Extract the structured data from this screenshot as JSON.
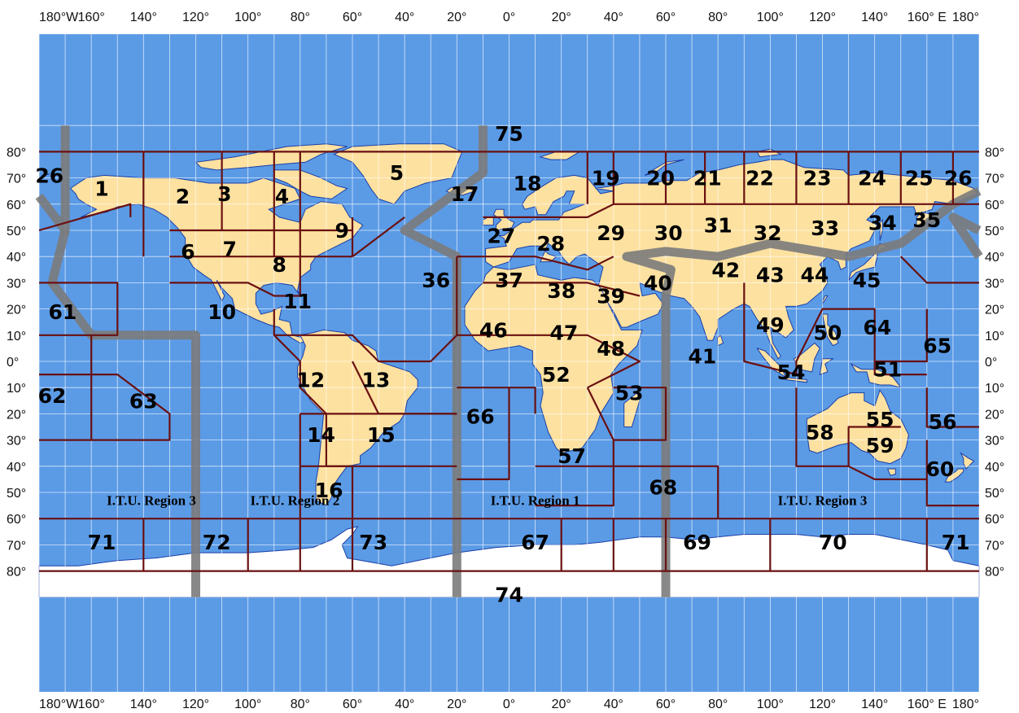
{
  "colors": {
    "ocean": "#5b9be6",
    "land": "#fde1a0",
    "ice": "#ffffff",
    "grid": "#ffffff",
    "zone_border": "#6a1010",
    "region_border": "#7b7b7b",
    "country_border": "#e02020"
  },
  "top_labels": [
    "180°W",
    "160°",
    "140°",
    "120°",
    "100°",
    "80°",
    "60°",
    "40°",
    "20°",
    "0°",
    "20°",
    "40°",
    "60°",
    "80°",
    "100°",
    "120°",
    "140°",
    "160° E",
    "180°"
  ],
  "bottom_labels": [
    "180°W",
    "160°",
    "140°",
    "120°",
    "100°",
    "80°",
    "60°",
    "40°",
    "20°",
    "0°",
    "20°",
    "40°",
    "60°",
    "80°",
    "100°",
    "120°",
    "140°",
    "160° E",
    "180°"
  ],
  "lat_labels": [
    "80°",
    "70°",
    "60°",
    "50°",
    "40°",
    "30°",
    "20°",
    "10°",
    "0°",
    "10°",
    "20°",
    "30°",
    "40°",
    "50°",
    "60°",
    "70°",
    "80°"
  ],
  "regions": [
    "I.T.U. Region 3",
    "I.T.U. Region 2",
    "I.T.U. Region 1",
    "I.T.U. Region 3"
  ],
  "zones": [
    {
      "label": "1",
      "lon": -156,
      "lat": 66
    },
    {
      "label": "2",
      "lon": -125,
      "lat": 63
    },
    {
      "label": "3",
      "lon": -109,
      "lat": 64
    },
    {
      "label": "4",
      "lon": -87,
      "lat": 63
    },
    {
      "label": "5",
      "lon": -43,
      "lat": 72
    },
    {
      "label": "6",
      "lon": -123,
      "lat": 42
    },
    {
      "label": "7",
      "lon": -107,
      "lat": 43
    },
    {
      "label": "8",
      "lon": -88,
      "lat": 37
    },
    {
      "label": "9",
      "lon": -64,
      "lat": 50
    },
    {
      "label": "10",
      "lon": -110,
      "lat": 19
    },
    {
      "label": "11",
      "lon": -81,
      "lat": 23
    },
    {
      "label": "12",
      "lon": -76,
      "lat": -7
    },
    {
      "label": "13",
      "lon": -51,
      "lat": -7
    },
    {
      "label": "14",
      "lon": -72,
      "lat": -28
    },
    {
      "label": "15",
      "lon": -49,
      "lat": -28
    },
    {
      "label": "16",
      "lon": -69,
      "lat": -49
    },
    {
      "label": "17",
      "lon": -17,
      "lat": 64
    },
    {
      "label": "18",
      "lon": 7,
      "lat": 68
    },
    {
      "label": "19",
      "lon": 37,
      "lat": 70
    },
    {
      "label": "20",
      "lon": 58,
      "lat": 70
    },
    {
      "label": "21",
      "lon": 76,
      "lat": 70
    },
    {
      "label": "22",
      "lon": 96,
      "lat": 70
    },
    {
      "label": "23",
      "lon": 118,
      "lat": 70
    },
    {
      "label": "24",
      "lon": 139,
      "lat": 70
    },
    {
      "label": "25",
      "lon": 157,
      "lat": 70
    },
    {
      "label": "26",
      "lon": 172,
      "lat": 70
    },
    {
      "label": "26",
      "lon": -176,
      "lat": 71
    },
    {
      "label": "27",
      "lon": -3,
      "lat": 48
    },
    {
      "label": "28",
      "lon": 16,
      "lat": 45
    },
    {
      "label": "29",
      "lon": 39,
      "lat": 49
    },
    {
      "label": "30",
      "lon": 61,
      "lat": 49
    },
    {
      "label": "31",
      "lon": 80,
      "lat": 52
    },
    {
      "label": "32",
      "lon": 99,
      "lat": 49
    },
    {
      "label": "33",
      "lon": 121,
      "lat": 51
    },
    {
      "label": "34",
      "lon": 143,
      "lat": 53
    },
    {
      "label": "35",
      "lon": 160,
      "lat": 54
    },
    {
      "label": "36",
      "lon": -28,
      "lat": 31
    },
    {
      "label": "37",
      "lon": 0,
      "lat": 31
    },
    {
      "label": "38",
      "lon": 20,
      "lat": 27
    },
    {
      "label": "39",
      "lon": 39,
      "lat": 25
    },
    {
      "label": "40",
      "lon": 57,
      "lat": 30
    },
    {
      "label": "41",
      "lon": 74,
      "lat": 2
    },
    {
      "label": "42",
      "lon": 83,
      "lat": 35
    },
    {
      "label": "43",
      "lon": 100,
      "lat": 33
    },
    {
      "label": "44",
      "lon": 117,
      "lat": 33
    },
    {
      "label": "45",
      "lon": 137,
      "lat": 31
    },
    {
      "label": "46",
      "lon": -6,
      "lat": 12
    },
    {
      "label": "47",
      "lon": 21,
      "lat": 11
    },
    {
      "label": "48",
      "lon": 39,
      "lat": 5
    },
    {
      "label": "49",
      "lon": 100,
      "lat": 14
    },
    {
      "label": "50",
      "lon": 122,
      "lat": 11
    },
    {
      "label": "51",
      "lon": 145,
      "lat": -3
    },
    {
      "label": "52",
      "lon": 18,
      "lat": -5
    },
    {
      "label": "53",
      "lon": 46,
      "lat": -12
    },
    {
      "label": "54",
      "lon": 108,
      "lat": -4
    },
    {
      "label": "55",
      "lon": 142,
      "lat": -22
    },
    {
      "label": "56",
      "lon": 166,
      "lat": -23
    },
    {
      "label": "57",
      "lon": 24,
      "lat": -36
    },
    {
      "label": "58",
      "lon": 119,
      "lat": -27
    },
    {
      "label": "59",
      "lon": 142,
      "lat": -32
    },
    {
      "label": "60",
      "lon": 165,
      "lat": -41
    },
    {
      "label": "61",
      "lon": -171,
      "lat": 19
    },
    {
      "label": "62",
      "lon": -175,
      "lat": -13
    },
    {
      "label": "63",
      "lon": -140,
      "lat": -15
    },
    {
      "label": "64",
      "lon": 141,
      "lat": 13
    },
    {
      "label": "65",
      "lon": 164,
      "lat": 6
    },
    {
      "label": "66",
      "lon": -11,
      "lat": -21
    },
    {
      "label": "67",
      "lon": 10,
      "lat": -69
    },
    {
      "label": "68",
      "lon": 59,
      "lat": -48
    },
    {
      "label": "69",
      "lon": 72,
      "lat": -69
    },
    {
      "label": "70",
      "lon": 124,
      "lat": -69
    },
    {
      "label": "71",
      "lon": -156,
      "lat": -69
    },
    {
      "label": "71",
      "lon": 171,
      "lat": -69
    },
    {
      "label": "72",
      "lon": -112,
      "lat": -69
    },
    {
      "label": "73",
      "lon": -52,
      "lat": -69
    },
    {
      "label": "74",
      "lon": 0,
      "lat": -89
    },
    {
      "label": "75",
      "lon": 0,
      "lat": 87
    }
  ]
}
